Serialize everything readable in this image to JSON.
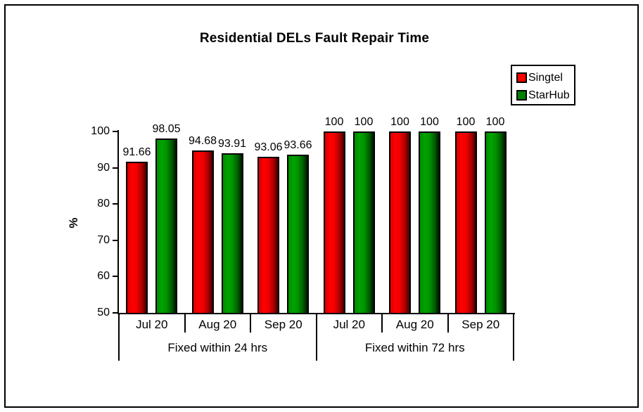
{
  "title": "Residential DELs Fault Repair Time",
  "y_axis_title": "%",
  "legend": {
    "items": [
      {
        "label": "Singtel",
        "color": "#ff0000"
      },
      {
        "label": "StarHub",
        "color": "#008000"
      }
    ]
  },
  "chart_data": {
    "type": "bar",
    "title": "Residential DELs Fault Repair Time",
    "xlabel": "",
    "ylabel": "%",
    "ylim": [
      50,
      100
    ],
    "y_ticks": [
      50,
      60,
      70,
      80,
      90,
      100
    ],
    "grid": false,
    "legend_position": "top-right",
    "categories": [
      "Jul 20",
      "Aug 20",
      "Sep 20",
      "Jul 20",
      "Aug 20",
      "Sep 20"
    ],
    "category_groups": [
      {
        "label": "Fixed within 24 hrs",
        "span": 3
      },
      {
        "label": "Fixed within 72 hrs",
        "span": 3
      }
    ],
    "series": [
      {
        "name": "Singtel",
        "color": "#ff0000",
        "values": [
          91.66,
          94.68,
          93.06,
          100,
          100,
          100
        ],
        "labels": [
          "91.66",
          "94.68",
          "93.06",
          "100",
          "100",
          "100"
        ]
      },
      {
        "name": "StarHub",
        "color": "#008000",
        "values": [
          98.05,
          93.91,
          93.66,
          100,
          100,
          100
        ],
        "labels": [
          "98.05",
          "93.91",
          "93.66",
          "100",
          "100",
          "100"
        ]
      }
    ]
  }
}
